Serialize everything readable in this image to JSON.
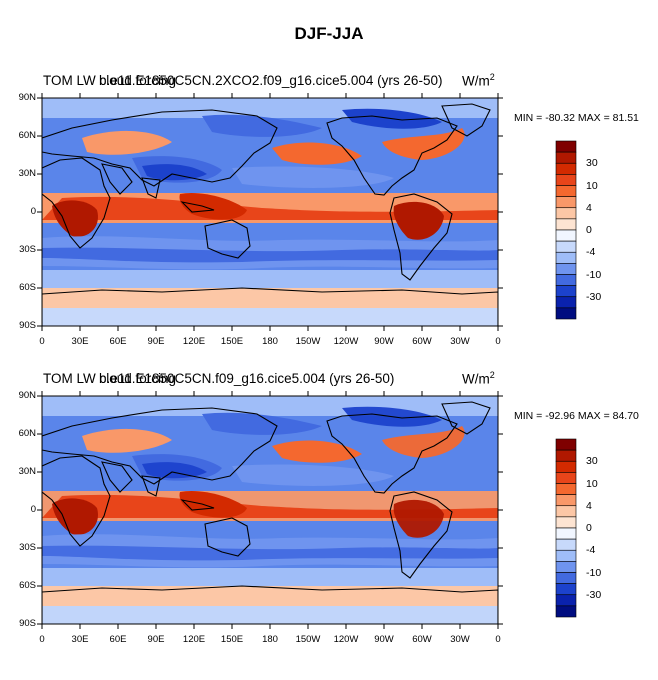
{
  "title": "DJF-JJA",
  "panels": [
    {
      "left_title": "TOM LW cloud forcing",
      "case_name": "b.e11.E1850C5CN.2XCO2.f09_g16.cice5.004 (yrs 26-50)",
      "units": "W/m",
      "units_sup": "2",
      "min_max": "MIN = -80.32  MAX =  81.51"
    },
    {
      "left_title": "TOM LW cloud forcing",
      "case_name": "b.e11.E1850C5CN.f09_g16.cice5.004 (yrs 26-50)",
      "units": "W/m",
      "units_sup": "2",
      "min_max": "MIN = -92.96  MAX =  84.70"
    }
  ],
  "axes": {
    "lat_ticks": [
      "90N",
      "60N",
      "30N",
      "0",
      "30S",
      "60S",
      "90S"
    ],
    "lon_ticks": [
      "0",
      "30E",
      "60E",
      "90E",
      "120E",
      "150E",
      "180",
      "150W",
      "120W",
      "90W",
      "60W",
      "30W",
      "0"
    ]
  },
  "colorbar": {
    "labels": [
      "30",
      "10",
      "4",
      "0",
      "-4",
      "-10",
      "-30"
    ],
    "colors": [
      "#7f0000",
      "#b01800",
      "#d32a00",
      "#e8451a",
      "#f4682f",
      "#f99869",
      "#fcc7a6",
      "#fde4d2",
      "#f1f6ff",
      "#c7d9fb",
      "#9fbdf8",
      "#6f94ef",
      "#426ae0",
      "#1c42cc",
      "#0a22ad",
      "#000d80"
    ]
  },
  "colors": {
    "land_outline": "#000000",
    "strong_positive": "#c12100",
    "positive": "#f27a45",
    "neutral": "#f6f8ff",
    "negative": "#5a85ea",
    "strong_negative": "#0d25b0"
  }
}
